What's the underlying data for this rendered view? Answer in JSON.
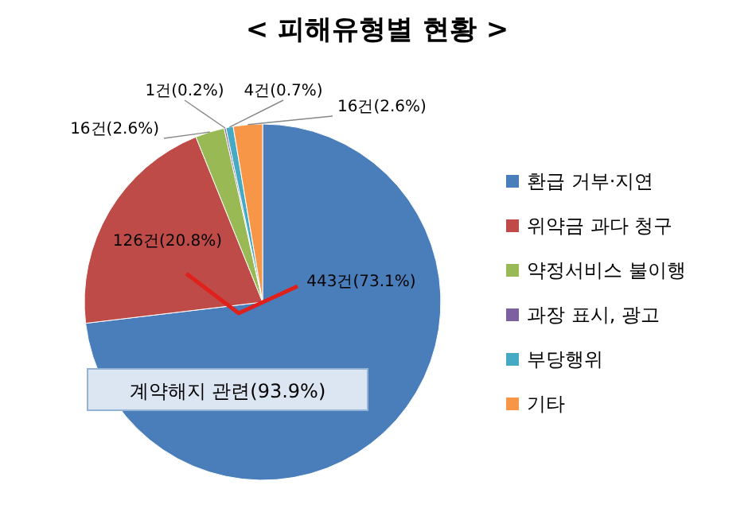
{
  "chart_data": {
    "type": "pie",
    "title": "< 피해유형별 현황 >",
    "categories": [
      "환급 거부·지연",
      "위약금 과다 청구",
      "약정서비스 불이행",
      "과장 표시, 광고",
      "부당행위",
      "기타"
    ],
    "values": [
      443,
      126,
      16,
      1,
      4,
      16
    ],
    "colors": [
      "#4a7ebb",
      "#be4b48",
      "#98b954",
      "#7d60a0",
      "#46aac5",
      "#f79646"
    ],
    "value_labels": [
      "443건(73.1%)",
      "126건(20.8%)",
      "16건(2.6%)",
      "1건(0.2%)",
      "4건(0.7%)",
      "16건(2.6%)"
    ],
    "legend": "right",
    "annotations": [
      "계약해지 관련(93.9%)"
    ]
  }
}
